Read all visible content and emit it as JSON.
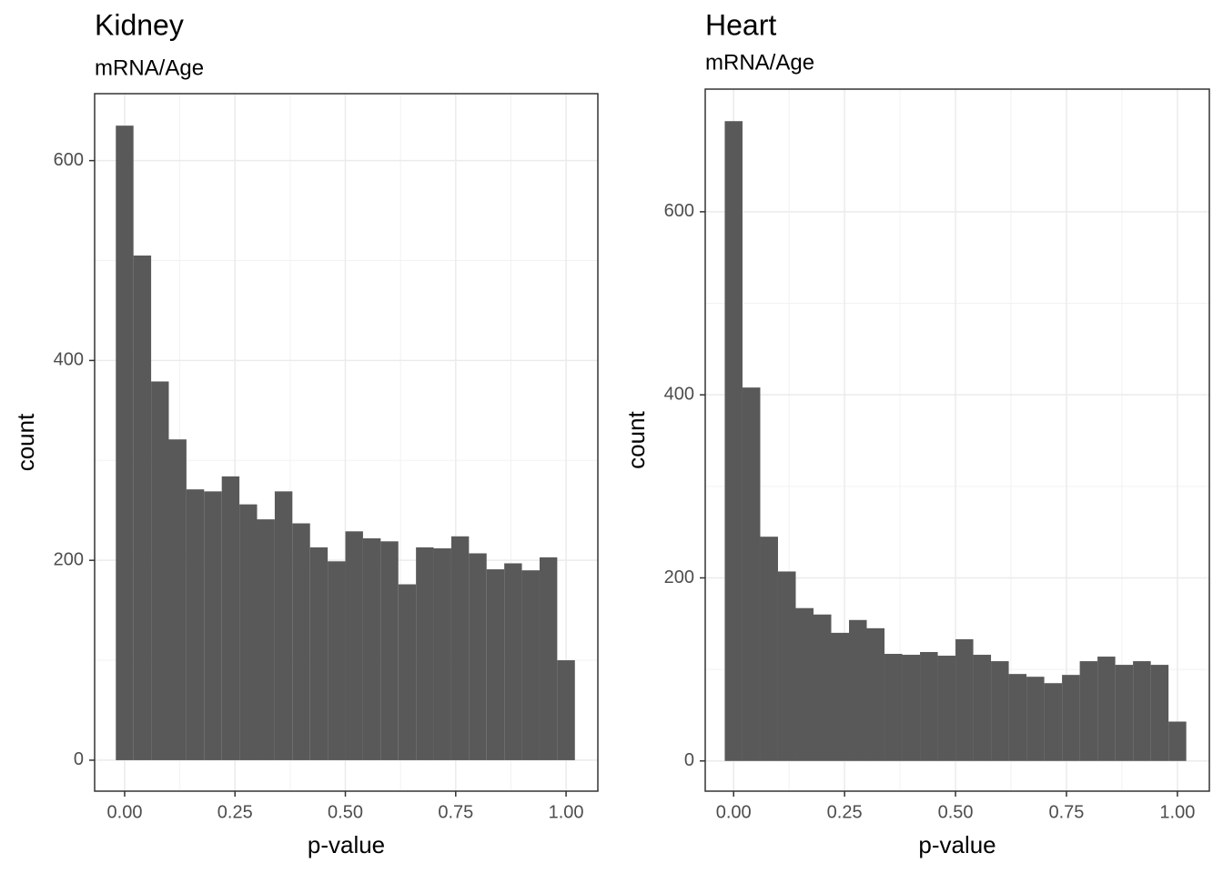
{
  "chart_data": [
    {
      "type": "histogram",
      "title": "Kidney",
      "subtitle": "mRNA/Age",
      "x_label": "p-value",
      "y_label": "count",
      "color": "#595959",
      "grid": true,
      "bins": [
        -0.02,
        0.02,
        0.06,
        0.1,
        0.14,
        0.18,
        0.22,
        0.26,
        0.3,
        0.34,
        0.38,
        0.42,
        0.46,
        0.5,
        0.54,
        0.58,
        0.62,
        0.66,
        0.7,
        0.74,
        0.78,
        0.82,
        0.86,
        0.9,
        0.94,
        0.98,
        1.02
      ],
      "values": [
        635,
        505,
        379,
        321,
        271,
        269,
        284,
        256,
        241,
        269,
        237,
        213,
        199,
        229,
        222,
        219,
        176,
        213,
        212,
        224,
        207,
        191,
        197,
        190,
        203,
        100
      ],
      "xlim": [
        -0.068,
        1.072
      ],
      "ylim": [
        -31,
        667
      ],
      "xticks": [
        {
          "value": 0,
          "label": "0.00"
        },
        0.25,
        {
          "value": 0.5,
          "label": "0.50"
        },
        0.75,
        {
          "value": 1,
          "label": "1.00"
        }
      ],
      "yticks": [
        0,
        200,
        400,
        600
      ]
    },
    {
      "type": "histogram",
      "title": "Heart",
      "subtitle": "mRNA/Age",
      "x_label": "p-value",
      "y_label": "count",
      "color": "#595959",
      "grid": true,
      "bins": [
        -0.02,
        0.02,
        0.06,
        0.1,
        0.14,
        0.18,
        0.22,
        0.26,
        0.3,
        0.34,
        0.38,
        0.42,
        0.46,
        0.5,
        0.54,
        0.58,
        0.62,
        0.66,
        0.7,
        0.74,
        0.78,
        0.82,
        0.86,
        0.9,
        0.94,
        0.98,
        1.02
      ],
      "values": [
        699,
        408,
        245,
        207,
        167,
        160,
        140,
        154,
        145,
        117,
        116,
        119,
        115,
        133,
        116,
        109,
        95,
        92,
        85,
        94,
        109,
        114,
        105,
        109,
        105,
        43
      ],
      "xlim": [
        -0.064,
        1.072
      ],
      "ylim": [
        -33,
        734
      ],
      "xticks": [
        {
          "value": 0,
          "label": "0.00"
        },
        0.25,
        {
          "value": 0.5,
          "label": "0.50"
        },
        0.75,
        {
          "value": 1,
          "label": "1.00"
        }
      ],
      "yticks": [
        0,
        200,
        400,
        600
      ]
    }
  ]
}
